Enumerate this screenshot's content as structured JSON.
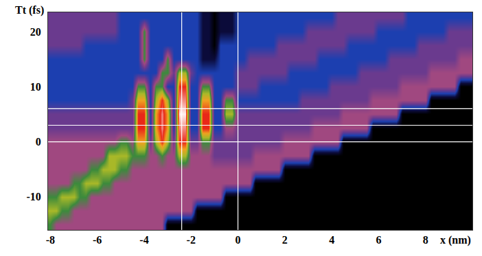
{
  "chart_data": {
    "type": "heatmap",
    "x_label": "x (nm)",
    "y_label": "Tt (fs)",
    "xlim": [
      -8.1,
      10
    ],
    "ylim": [
      -16,
      23.5
    ],
    "xticks": [
      -8,
      -6,
      -4,
      -2,
      0,
      2,
      4,
      6,
      8
    ],
    "yticks": [
      -10,
      0,
      10,
      20
    ],
    "grid": false,
    "zlim": [
      0,
      9
    ],
    "vertical_lines": [
      -2.4,
      0
    ],
    "horizontal_lines": [
      0,
      3,
      6
    ],
    "x": [
      -8,
      -7.75,
      -7.5,
      -7.25,
      -7,
      -6.75,
      -6.5,
      -6.25,
      -6,
      -5.75,
      -5.5,
      -5.25,
      -5,
      -4.75,
      -4.5,
      -4.25,
      -4,
      -3.75,
      -3.5,
      -3.25,
      -3,
      -2.75,
      -2.5,
      -2.25,
      -2,
      -1.75,
      -1.5,
      -1.25,
      -1,
      -0.75,
      -0.5,
      -0.25,
      0,
      0.25,
      0.5,
      0.75,
      1,
      1.25,
      1.5,
      1.75,
      2,
      2.25,
      2.5,
      2.75,
      3,
      3.25,
      3.5,
      3.75,
      4,
      4.25,
      4.5,
      4.75,
      5,
      5.25,
      5.5,
      5.75,
      6,
      6.25,
      6.5,
      6.75,
      7,
      7.25,
      7.5,
      7.75,
      8,
      8.25,
      8.5,
      8.75,
      9,
      9.25,
      9.5,
      9.75,
      10
    ],
    "y": [
      -15,
      -12.5,
      -10,
      -7.5,
      -5,
      -2.5,
      0,
      2.5,
      5,
      7.5,
      10,
      12.5,
      15,
      17.5,
      20,
      22.5
    ],
    "z": [
      [
        5,
        4,
        4,
        4,
        4,
        4,
        4,
        4,
        4,
        4,
        4,
        4,
        4,
        4,
        4,
        4,
        4,
        4,
        4,
        4,
        0,
        0,
        0,
        0,
        0,
        0,
        0,
        0,
        0,
        0,
        0,
        0,
        0,
        0,
        0,
        0,
        0,
        0,
        0,
        0,
        0,
        0,
        0,
        0,
        0,
        0,
        0,
        0,
        0,
        0,
        0,
        0,
        0,
        0,
        0,
        0,
        0,
        0,
        0,
        0,
        0,
        0,
        0,
        0,
        0,
        0,
        0,
        0,
        0,
        0,
        0,
        0,
        0
      ],
      [
        6,
        6,
        5,
        5,
        4,
        4,
        4,
        4,
        4,
        4,
        4,
        4,
        4,
        4,
        4,
        4,
        4,
        4,
        4,
        4,
        4,
        4,
        4,
        4,
        4,
        0,
        0,
        0,
        0,
        0,
        0,
        0,
        0,
        0,
        0,
        0,
        0,
        0,
        0,
        0,
        0,
        0,
        0,
        0,
        0,
        0,
        0,
        0,
        0,
        0,
        0,
        0,
        0,
        0,
        0,
        0,
        0,
        0,
        0,
        0,
        0,
        0,
        0,
        0,
        0,
        0,
        0,
        0,
        0,
        0,
        0,
        0,
        0
      ],
      [
        5,
        5,
        6,
        6,
        6,
        5,
        5,
        4,
        4,
        4,
        4,
        4,
        4,
        4,
        4,
        4,
        4,
        4,
        4,
        4,
        4,
        4,
        4,
        4,
        4,
        4,
        4,
        4,
        4,
        4,
        0,
        0,
        0,
        0,
        0,
        0,
        0,
        0,
        0,
        0,
        0,
        0,
        0,
        0,
        0,
        0,
        0,
        0,
        0,
        0,
        0,
        0,
        0,
        0,
        0,
        0,
        0,
        0,
        0,
        0,
        0,
        0,
        0,
        0,
        0,
        0,
        0,
        0,
        0,
        0,
        0,
        0,
        0
      ],
      [
        4,
        4,
        4,
        4,
        5,
        5,
        6,
        6,
        6,
        5,
        5,
        4,
        4,
        4,
        4,
        4,
        4,
        4,
        4,
        4,
        4,
        4,
        4,
        4,
        4,
        4,
        4,
        4,
        4,
        4,
        4,
        4,
        4,
        4,
        4,
        0,
        0,
        0,
        0,
        0,
        0,
        0,
        0,
        0,
        0,
        0,
        0,
        0,
        0,
        0,
        0,
        0,
        0,
        0,
        0,
        0,
        0,
        0,
        0,
        0,
        0,
        0,
        0,
        0,
        0,
        0,
        0,
        0,
        0,
        0,
        0,
        0,
        0
      ],
      [
        4,
        4,
        4,
        4,
        4,
        4,
        4,
        5,
        5,
        6,
        6,
        6,
        5,
        5,
        4,
        4,
        4,
        4,
        4,
        4,
        4,
        4,
        4,
        4,
        4,
        4,
        4,
        4,
        4,
        4,
        4,
        4,
        4,
        4,
        4,
        4,
        4,
        4,
        4,
        4,
        0,
        0,
        0,
        0,
        0,
        0,
        0,
        0,
        0,
        0,
        0,
        0,
        0,
        0,
        0,
        0,
        0,
        0,
        0,
        0,
        0,
        0,
        0,
        0,
        0,
        0,
        0,
        0,
        0,
        0,
        0,
        0,
        0
      ],
      [
        4,
        4,
        4,
        4,
        4,
        4,
        4,
        4,
        4,
        4,
        6,
        6,
        6,
        6,
        5,
        5,
        5,
        4,
        4,
        5,
        4,
        4,
        6,
        6,
        4,
        4,
        4,
        4,
        3,
        3,
        3,
        3,
        3,
        3,
        3,
        4,
        4,
        4,
        4,
        4,
        4,
        4,
        4,
        4,
        4,
        0,
        0,
        0,
        0,
        0,
        0,
        0,
        0,
        0,
        0,
        0,
        0,
        0,
        0,
        0,
        0,
        0,
        0,
        0,
        0,
        0,
        0,
        0,
        0,
        0,
        0,
        0,
        0
      ],
      [
        4,
        4,
        4,
        4,
        4,
        4,
        4,
        4,
        4,
        4,
        4,
        4,
        5,
        5,
        4,
        7,
        7,
        3,
        6,
        8,
        6,
        3,
        8,
        8,
        3,
        3,
        5,
        5,
        3,
        3,
        3,
        3,
        3,
        3,
        3,
        3,
        3,
        3,
        3,
        3,
        4,
        4,
        4,
        4,
        4,
        4,
        4,
        4,
        4,
        4,
        0,
        0,
        0,
        0,
        0,
        0,
        0,
        0,
        0,
        0,
        0,
        0,
        0,
        0,
        0,
        0,
        0,
        0,
        0,
        0,
        0,
        0,
        0
      ],
      [
        3,
        3,
        3,
        3,
        3,
        3,
        3,
        3,
        3,
        3,
        3,
        3,
        3,
        3,
        3,
        8,
        8,
        2,
        7,
        8.5,
        7,
        2,
        8.5,
        8.5,
        2,
        2,
        8,
        8,
        2,
        2,
        4,
        4,
        3,
        3,
        3,
        3,
        3,
        3,
        3,
        3,
        3,
        3,
        3,
        3,
        3,
        4,
        4,
        4,
        4,
        4,
        4,
        4,
        4,
        4,
        4,
        0,
        0,
        0,
        0,
        0,
        0,
        0,
        0,
        0,
        0,
        0,
        0,
        0,
        0,
        0,
        0,
        0,
        0
      ],
      [
        3,
        3,
        3,
        3,
        3,
        3,
        3,
        3,
        3,
        3,
        3,
        3,
        3,
        3,
        3,
        8,
        8,
        2,
        7,
        8.5,
        7,
        2,
        9,
        9,
        2,
        2,
        8,
        8,
        2,
        2,
        6,
        6,
        3,
        3,
        3,
        3,
        3,
        3,
        3,
        3,
        3,
        3,
        3,
        3,
        3,
        3,
        3,
        3,
        3,
        3,
        4,
        4,
        4,
        4,
        4,
        4,
        4,
        4,
        4,
        4,
        0,
        0,
        0,
        0,
        0,
        0,
        0,
        0,
        0,
        0,
        0,
        0,
        0
      ],
      [
        2,
        2,
        2,
        2,
        2,
        2,
        2,
        2,
        2,
        2,
        2,
        2,
        2,
        2,
        3,
        7,
        7,
        2,
        6,
        8,
        6,
        2,
        8.5,
        8.5,
        2,
        2,
        7,
        7,
        2,
        2,
        5,
        5,
        2,
        2,
        2,
        2,
        2,
        2,
        2,
        2,
        2,
        2,
        2,
        3,
        3,
        3,
        3,
        3,
        3,
        3,
        3,
        3,
        3,
        3,
        3,
        4,
        4,
        4,
        4,
        4,
        4,
        4,
        4,
        4,
        4,
        0,
        0,
        0,
        0,
        0,
        0,
        0,
        0
      ],
      [
        2,
        2,
        2,
        2,
        2,
        2,
        2,
        2,
        2,
        2,
        2,
        2,
        2,
        2,
        2,
        5,
        5,
        2,
        5,
        5,
        2,
        2,
        8,
        8,
        2,
        2,
        5,
        5,
        2,
        2,
        2,
        2,
        3,
        3,
        3,
        3,
        2,
        2,
        2,
        2,
        2,
        2,
        2,
        2,
        2,
        2,
        2,
        2,
        3,
        3,
        3,
        3,
        3,
        3,
        3,
        3,
        3,
        3,
        3,
        3,
        4,
        4,
        4,
        4,
        4,
        4,
        4,
        4,
        4,
        4,
        0,
        0,
        0
      ],
      [
        2,
        2,
        2,
        2,
        2,
        2,
        2,
        2,
        2,
        2,
        2,
        2,
        2,
        2,
        2,
        2,
        2,
        2,
        2,
        5,
        5,
        3,
        6,
        6,
        3,
        2,
        2,
        2,
        2,
        2,
        2,
        2,
        3,
        3,
        3,
        3,
        3,
        3,
        3,
        3,
        3,
        2,
        2,
        2,
        2,
        2,
        2,
        2,
        2,
        2,
        2,
        2,
        2,
        3,
        3,
        3,
        3,
        3,
        3,
        3,
        3,
        3,
        3,
        3,
        3,
        4,
        4,
        4,
        4,
        4,
        4,
        4,
        4
      ],
      [
        2,
        2,
        2,
        2,
        2,
        2,
        2,
        2,
        2,
        2,
        2,
        2,
        2,
        2,
        2,
        2,
        5,
        2,
        2,
        2,
        5,
        2,
        2,
        2,
        2,
        2,
        1,
        1,
        1,
        2,
        2,
        2,
        2,
        2,
        3,
        3,
        3,
        3,
        3,
        3,
        3,
        3,
        3,
        3,
        3,
        3,
        2,
        2,
        2,
        2,
        2,
        2,
        2,
        2,
        2,
        2,
        2,
        2,
        3,
        3,
        3,
        3,
        3,
        3,
        3,
        3,
        3,
        3,
        3,
        3,
        4,
        4,
        4
      ],
      [
        3,
        3,
        3,
        3,
        3,
        3,
        2,
        2,
        2,
        2,
        2,
        2,
        2,
        2,
        2,
        2,
        5,
        2,
        2,
        2,
        2,
        2,
        2,
        2,
        2,
        2,
        1,
        1,
        0,
        2,
        2,
        2,
        2,
        2,
        2,
        2,
        2,
        2,
        2,
        3,
        3,
        3,
        3,
        3,
        3,
        3,
        3,
        3,
        3,
        3,
        3,
        2,
        2,
        2,
        2,
        2,
        2,
        2,
        2,
        2,
        2,
        2,
        2,
        3,
        3,
        3,
        3,
        3,
        3,
        3,
        3,
        3,
        3
      ],
      [
        3,
        3,
        3,
        3,
        3,
        3,
        3,
        3,
        3,
        3,
        3,
        3,
        2,
        2,
        2,
        2,
        5,
        2,
        2,
        2,
        2,
        2,
        2,
        2,
        2,
        2,
        1,
        1,
        0,
        1,
        1,
        1,
        2,
        2,
        2,
        2,
        2,
        2,
        2,
        2,
        2,
        2,
        2,
        2,
        3,
        3,
        3,
        3,
        3,
        3,
        3,
        3,
        3,
        3,
        3,
        3,
        2,
        2,
        2,
        2,
        2,
        2,
        2,
        2,
        2,
        2,
        2,
        2,
        3,
        3,
        3,
        3,
        3
      ],
      [
        3,
        3,
        3,
        3,
        3,
        3,
        3,
        3,
        3,
        3,
        3,
        3,
        2,
        2,
        2,
        2,
        2,
        2,
        2,
        2,
        2,
        2,
        2,
        2,
        2,
        2,
        1,
        1,
        0,
        1,
        1,
        1,
        2,
        2,
        2,
        2,
        2,
        2,
        2,
        2,
        2,
        2,
        2,
        2,
        2,
        2,
        2,
        2,
        2,
        3,
        3,
        3,
        3,
        3,
        3,
        3,
        3,
        3,
        3,
        3,
        3,
        2,
        2,
        2,
        2,
        2,
        2,
        2,
        2,
        2,
        2,
        2,
        2
      ]
    ]
  }
}
